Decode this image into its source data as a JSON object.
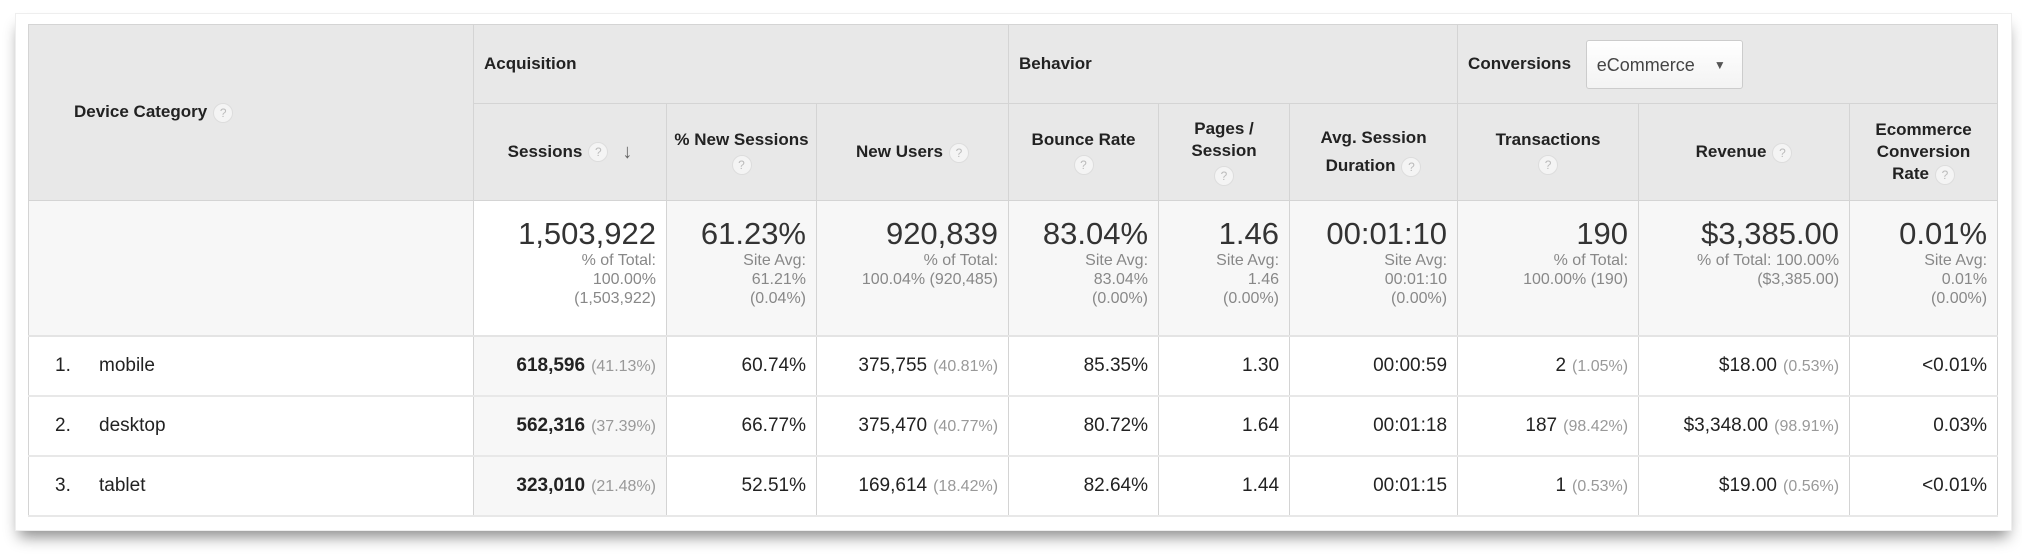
{
  "header": {
    "dimension": "Device Category",
    "groups": {
      "acquisition": "Acquisition",
      "behavior": "Behavior",
      "conversions": "Conversions"
    },
    "conversions_dropdown": {
      "selected": "eCommerce"
    },
    "columns": {
      "sessions": "Sessions",
      "pct_new_sessions": "% New Sessions",
      "new_users": "New Users",
      "bounce_rate": "Bounce Rate",
      "pages_session": "Pages / Session",
      "avg_session_duration": "Avg. Session Duration",
      "transactions": "Transactions",
      "revenue": "Revenue",
      "ecommerce_conversion_rate": "Ecommerce Conversion Rate"
    },
    "help_icon": "?",
    "sort_icon": "↓"
  },
  "totals": {
    "sessions": {
      "value": "1,503,922",
      "l1": "% of Total:",
      "l2": "100.00%",
      "l3": "(1,503,922)"
    },
    "pct_new_sessions": {
      "value": "61.23%",
      "l1": "Site Avg:",
      "l2": "61.21%",
      "l3": "(0.04%)"
    },
    "new_users": {
      "value": "920,839",
      "l1": "% of Total:",
      "l2": "100.04% (920,485)"
    },
    "bounce_rate": {
      "value": "83.04%",
      "l1": "Site Avg:",
      "l2": "83.04%",
      "l3": "(0.00%)"
    },
    "pages_session": {
      "value": "1.46",
      "l1": "Site Avg:",
      "l2": "1.46",
      "l3": "(0.00%)"
    },
    "avg_session_duration": {
      "value": "00:01:10",
      "l1": "Site Avg:",
      "l2": "00:01:10",
      "l3": "(0.00%)"
    },
    "transactions": {
      "value": "190",
      "l1": "% of Total:",
      "l2": "100.00% (190)"
    },
    "revenue": {
      "value": "$3,385.00",
      "l1": "% of Total: 100.00%",
      "l2": "($3,385.00)"
    },
    "ecommerce_conversion_rate": {
      "value": "0.01%",
      "l1": "Site Avg:",
      "l2": "0.01%",
      "l3": "(0.00%)"
    }
  },
  "rows": [
    {
      "index": "1.",
      "device": "mobile",
      "sessions": "618,596",
      "sessions_pct": "(41.13%)",
      "pct_new_sessions": "60.74%",
      "new_users": "375,755",
      "new_users_pct": "(40.81%)",
      "bounce_rate": "85.35%",
      "pages_session": "1.30",
      "avg_session_duration": "00:00:59",
      "transactions": "2",
      "transactions_pct": "(1.05%)",
      "revenue": "$18.00",
      "revenue_pct": "(0.53%)",
      "ecommerce_conversion_rate": "<0.01%"
    },
    {
      "index": "2.",
      "device": "desktop",
      "sessions": "562,316",
      "sessions_pct": "(37.39%)",
      "pct_new_sessions": "66.77%",
      "new_users": "375,470",
      "new_users_pct": "(40.77%)",
      "bounce_rate": "80.72%",
      "pages_session": "1.64",
      "avg_session_duration": "00:01:18",
      "transactions": "187",
      "transactions_pct": "(98.42%)",
      "revenue": "$3,348.00",
      "revenue_pct": "(98.91%)",
      "ecommerce_conversion_rate": "0.03%"
    },
    {
      "index": "3.",
      "device": "tablet",
      "sessions": "323,010",
      "sessions_pct": "(21.48%)",
      "pct_new_sessions": "52.51%",
      "new_users": "169,614",
      "new_users_pct": "(18.42%)",
      "bounce_rate": "82.64%",
      "pages_session": "1.44",
      "avg_session_duration": "00:01:15",
      "transactions": "1",
      "transactions_pct": "(0.53%)",
      "revenue": "$19.00",
      "revenue_pct": "(0.56%)",
      "ecommerce_conversion_rate": "<0.01%"
    }
  ]
}
